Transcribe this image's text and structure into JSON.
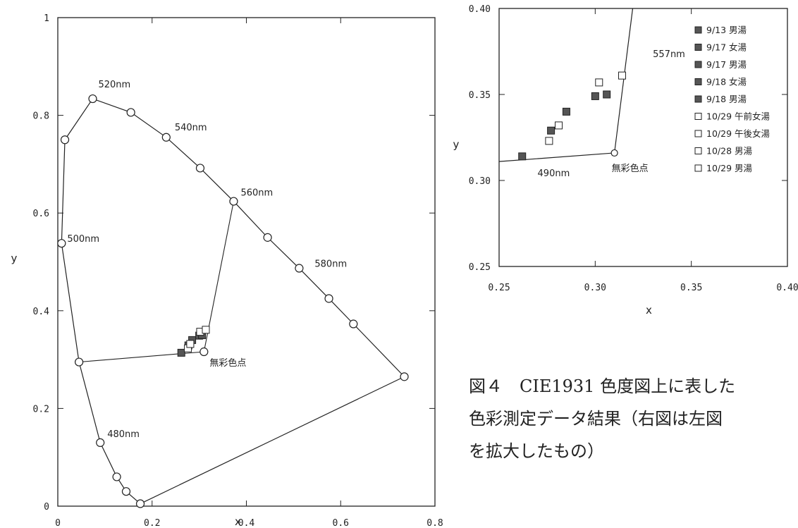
{
  "chart_data": [
    {
      "type": "scatter",
      "title": "",
      "xlabel": "x",
      "ylabel": "y",
      "xlim": [
        0,
        0.8
      ],
      "ylim": [
        0,
        1
      ],
      "x_ticks": [
        "0",
        "0.2",
        "0.4",
        "0.6",
        "0.8"
      ],
      "y_ticks": [
        "0",
        "0.2",
        "0.4",
        "0.6",
        "0.8",
        "1"
      ],
      "grid": false,
      "spectral_locus": [
        {
          "x": 0.175,
          "y": 0.005
        },
        {
          "x": 0.145,
          "y": 0.03
        },
        {
          "x": 0.125,
          "y": 0.06
        },
        {
          "x": 0.09,
          "y": 0.13
        },
        {
          "x": 0.045,
          "y": 0.295
        },
        {
          "x": 0.008,
          "y": 0.538
        },
        {
          "x": 0.015,
          "y": 0.75
        },
        {
          "x": 0.074,
          "y": 0.834
        },
        {
          "x": 0.155,
          "y": 0.806
        },
        {
          "x": 0.23,
          "y": 0.755
        },
        {
          "x": 0.302,
          "y": 0.692
        },
        {
          "x": 0.373,
          "y": 0.624
        },
        {
          "x": 0.445,
          "y": 0.55
        },
        {
          "x": 0.512,
          "y": 0.487
        },
        {
          "x": 0.575,
          "y": 0.425
        },
        {
          "x": 0.627,
          "y": 0.373
        },
        {
          "x": 0.735,
          "y": 0.265
        }
      ],
      "purple_line": [
        {
          "x": 0.735,
          "y": 0.265
        },
        {
          "x": 0.175,
          "y": 0.005
        }
      ],
      "dominant_wavelength_lines": [
        [
          {
            "x": 0.045,
            "y": 0.295
          },
          {
            "x": 0.31,
            "y": 0.316
          }
        ],
        [
          {
            "x": 0.31,
            "y": 0.316
          },
          {
            "x": 0.373,
            "y": 0.624
          }
        ]
      ],
      "achromatic_point": {
        "x": 0.31,
        "y": 0.316
      },
      "annotations": [
        {
          "text": "520nm",
          "x": 0.074,
          "y": 0.834
        },
        {
          "text": "540nm",
          "x": 0.23,
          "y": 0.755
        },
        {
          "text": "560nm",
          "x": 0.373,
          "y": 0.624
        },
        {
          "text": "500nm",
          "x": 0.008,
          "y": 0.538
        },
        {
          "text": "580nm",
          "x": 0.512,
          "y": 0.487
        },
        {
          "text": "480nm",
          "x": 0.09,
          "y": 0.13
        },
        {
          "text": "無彩色点",
          "x": 0.31,
          "y": 0.316
        }
      ],
      "series": [
        {
          "name": "9/13 男湯",
          "fill": "dark",
          "x": [
            0.262
          ],
          "y": [
            0.314
          ]
        },
        {
          "name": "9/17 女湯",
          "fill": "dark",
          "x": [
            0.277
          ],
          "y": [
            0.329
          ]
        },
        {
          "name": "9/17 男湯",
          "fill": "dark",
          "x": [
            0.285
          ],
          "y": [
            0.34
          ]
        },
        {
          "name": "9/18 女湯",
          "fill": "dark",
          "x": [
            0.3
          ],
          "y": [
            0.349
          ]
        },
        {
          "name": "9/18 男湯",
          "fill": "dark",
          "x": [
            0.306
          ],
          "y": [
            0.35
          ]
        },
        {
          "name": "10/29 午前女湯",
          "fill": "open",
          "x": [
            0.276
          ],
          "y": [
            0.323
          ]
        },
        {
          "name": "10/29 午後女湯",
          "fill": "open",
          "x": [
            0.281
          ],
          "y": [
            0.332
          ]
        },
        {
          "name": "10/28 男湯",
          "fill": "open",
          "x": [
            0.302
          ],
          "y": [
            0.357
          ]
        },
        {
          "name": "10/29 男湯",
          "fill": "open",
          "x": [
            0.314
          ],
          "y": [
            0.361
          ]
        }
      ]
    },
    {
      "type": "scatter",
      "title": "",
      "xlabel": "x",
      "ylabel": "y",
      "xlim": [
        0.25,
        0.4
      ],
      "ylim": [
        0.25,
        0.4
      ],
      "x_ticks": [
        "0.25",
        "0.30",
        "0.35",
        "0.40"
      ],
      "y_ticks": [
        "0.25",
        "0.30",
        "0.35",
        "0.40"
      ],
      "grid": false,
      "legend_position": "top-right",
      "boundary_line_490": [
        {
          "x": 0.25,
          "y": 0.311
        },
        {
          "x": 0.31,
          "y": 0.316
        }
      ],
      "boundary_line_557": [
        {
          "x": 0.31,
          "y": 0.316
        },
        {
          "x": 0.3195,
          "y": 0.4
        }
      ],
      "achromatic_point": {
        "x": 0.31,
        "y": 0.316
      },
      "annotations": [
        {
          "text": "557nm",
          "x": 0.33,
          "y": 0.375
        },
        {
          "text": "490nm",
          "x": 0.27,
          "y": 0.309
        },
        {
          "text": "無彩色点",
          "x": 0.31,
          "y": 0.316
        }
      ]
    }
  ],
  "caption": {
    "line1": "図４　CIE1931 色度図上に表した",
    "line2": "色彩測定データ結果（右図は左図",
    "line3": "を拡大したもの）"
  },
  "colors": {
    "ink": "#222222",
    "dark_marker": "#555555",
    "open_marker": "#ffffff"
  }
}
